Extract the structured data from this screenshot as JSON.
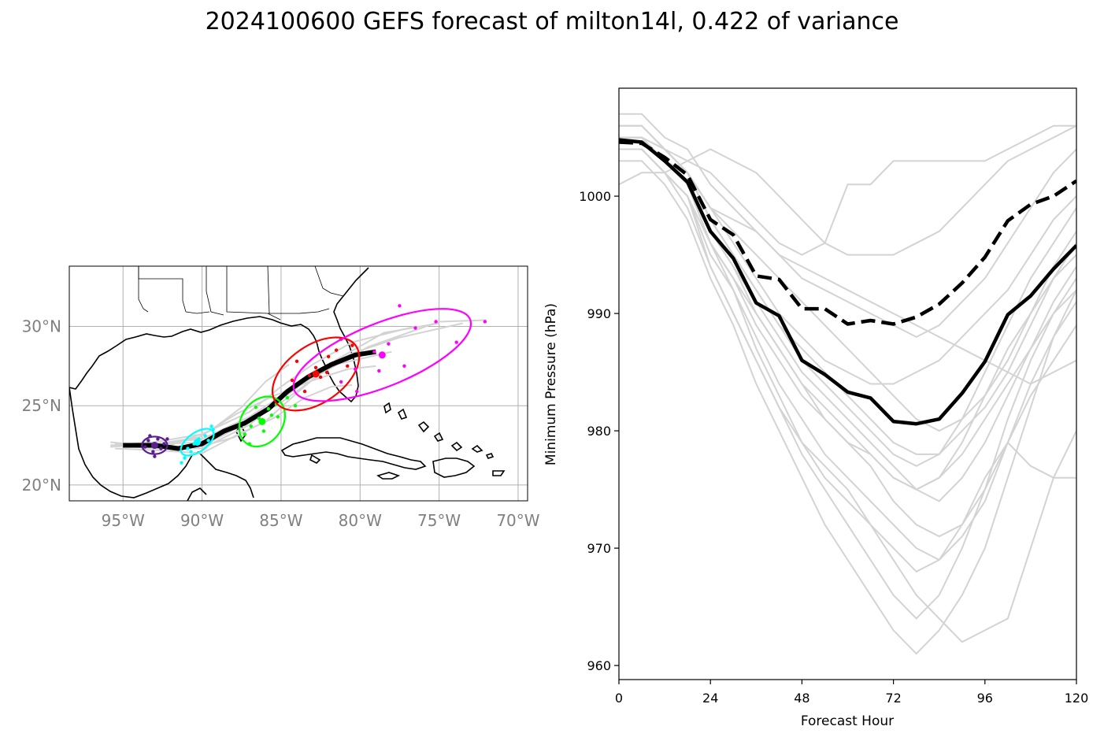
{
  "title": "2024100600 GEFS forecast of milton14l, 0.422 of variance",
  "chart_data": [
    {
      "type": "map",
      "panel": "track",
      "extent": {
        "lon": [
          -98.4,
          -69.4
        ],
        "lat": [
          19.0,
          33.8
        ]
      },
      "lon_ticks": [
        -95,
        -90,
        -85,
        -80,
        -75,
        -70
      ],
      "lat_ticks": [
        20,
        25,
        30
      ],
      "lon_tick_labels": [
        "95°W",
        "90°W",
        "85°W",
        "80°W",
        "75°W",
        "70°W"
      ],
      "lat_tick_labels": [
        "20°N",
        "25°N",
        "30°N"
      ],
      "grid": true,
      "colors": {
        "mean_track": "#000000",
        "members": "#d3d3d3",
        "coast": "#000000",
        "grid": "#b0b0b0",
        "tick_labels": "#808080"
      },
      "mean_track": [
        [
          -95.0,
          22.5
        ],
        [
          -93.0,
          22.5
        ],
        [
          -91.5,
          22.3
        ],
        [
          -90.0,
          22.6
        ],
        [
          -88.6,
          23.4
        ],
        [
          -87.3,
          23.9
        ],
        [
          -85.8,
          24.8
        ],
        [
          -84.6,
          25.9
        ],
        [
          -83.3,
          26.8
        ],
        [
          -81.8,
          27.6
        ],
        [
          -80.3,
          28.2
        ],
        [
          -79.0,
          28.4
        ]
      ],
      "member_tracks": [
        [
          [
            -95.8,
            22.4
          ],
          [
            -93.0,
            22.6
          ],
          [
            -90.0,
            22.9
          ],
          [
            -87.0,
            24.3
          ],
          [
            -85.0,
            25.6
          ],
          [
            -83.0,
            27.0
          ],
          [
            -80.5,
            28.3
          ],
          [
            -77.5,
            29.3
          ],
          [
            -73.5,
            30.2
          ]
        ],
        [
          [
            -95.8,
            22.7
          ],
          [
            -93.0,
            22.4
          ],
          [
            -90.0,
            22.3
          ],
          [
            -87.0,
            23.8
          ],
          [
            -85.5,
            25.0
          ],
          [
            -83.5,
            26.5
          ],
          [
            -81.5,
            27.6
          ],
          [
            -78.0,
            28.4
          ]
        ],
        [
          [
            -95.8,
            22.5
          ],
          [
            -93.0,
            22.7
          ],
          [
            -90.0,
            23.2
          ],
          [
            -87.0,
            24.6
          ],
          [
            -85.0,
            26.2
          ],
          [
            -83.0,
            27.6
          ],
          [
            -80.5,
            29.0
          ],
          [
            -76.5,
            30.0
          ]
        ],
        [
          [
            -95.5,
            22.3
          ],
          [
            -93.0,
            22.2
          ],
          [
            -90.0,
            22.0
          ],
          [
            -87.5,
            23.3
          ],
          [
            -85.5,
            24.2
          ],
          [
            -83.5,
            25.5
          ],
          [
            -81.8,
            26.2
          ],
          [
            -80.5,
            26.3
          ]
        ],
        [
          [
            -95.5,
            22.6
          ],
          [
            -92.5,
            22.6
          ],
          [
            -89.5,
            22.7
          ],
          [
            -87.0,
            24.0
          ],
          [
            -85.0,
            25.2
          ],
          [
            -82.5,
            27.0
          ],
          [
            -79.5,
            28.7
          ],
          [
            -75.0,
            30.3
          ],
          [
            -72.0,
            30.4
          ]
        ],
        [
          [
            -95.0,
            22.4
          ],
          [
            -92.0,
            22.5
          ],
          [
            -89.5,
            23.4
          ],
          [
            -87.5,
            24.9
          ],
          [
            -86.0,
            26.5
          ],
          [
            -84.5,
            27.6
          ]
        ],
        [
          [
            -95.5,
            22.5
          ],
          [
            -92.8,
            22.3
          ],
          [
            -90.2,
            22.4
          ],
          [
            -88.0,
            23.0
          ],
          [
            -86.0,
            24.0
          ],
          [
            -84.0,
            25.8
          ],
          [
            -81.5,
            27.9
          ],
          [
            -78.5,
            29.6
          ],
          [
            -75.0,
            30.2
          ]
        ],
        [
          [
            -95.5,
            22.5
          ],
          [
            -92.8,
            22.6
          ],
          [
            -90.2,
            23.0
          ],
          [
            -87.8,
            24.5
          ],
          [
            -85.5,
            25.6
          ],
          [
            -83.0,
            26.6
          ],
          [
            -80.8,
            27.3
          ],
          [
            -79.0,
            27.5
          ]
        ]
      ],
      "clusters": [
        {
          "hour": 24,
          "color": "#5b1f8f",
          "ellipse": {
            "lon": -93.0,
            "lat": 22.5,
            "a_deg": 0.8,
            "b_deg": 0.55,
            "angle": 0
          },
          "points": [
            [
              -93.4,
              22.8
            ],
            [
              -92.6,
              22.3
            ],
            [
              -93.1,
              22.1
            ],
            [
              -92.8,
              22.9
            ],
            [
              -93.6,
              22.4
            ],
            [
              -92.4,
              22.6
            ],
            [
              -93.0,
              21.8
            ],
            [
              -92.2,
              22.9
            ],
            [
              -93.3,
              23.1
            ],
            [
              -92.9,
              22.5
            ]
          ]
        },
        {
          "hour": 48,
          "color": "#00ffff",
          "ellipse": {
            "lon": -90.3,
            "lat": 22.7,
            "a_deg": 1.2,
            "b_deg": 0.6,
            "angle": -35
          },
          "points": [
            [
              -90.9,
              22.3
            ],
            [
              -89.8,
              23.1
            ],
            [
              -90.5,
              22.6
            ],
            [
              -91.1,
              21.7
            ],
            [
              -89.3,
              23.5
            ],
            [
              -90.2,
              22.9
            ],
            [
              -90.7,
              22.1
            ],
            [
              -89.6,
              22.8
            ],
            [
              -91.3,
              21.4
            ],
            [
              -89.4,
              23.7
            ]
          ]
        },
        {
          "hour": 72,
          "color": "#00ff00",
          "ellipse": {
            "lon": -86.2,
            "lat": 24.0,
            "a_deg": 1.7,
            "b_deg": 1.3,
            "angle": -55
          },
          "points": [
            [
              -86.4,
              24.2
            ],
            [
              -85.8,
              24.8
            ],
            [
              -86.9,
              23.7
            ],
            [
              -85.3,
              25.1
            ],
            [
              -87.3,
              23.2
            ],
            [
              -85.6,
              24.4
            ],
            [
              -86.1,
              23.4
            ],
            [
              -87.0,
              22.6
            ],
            [
              -84.6,
              25.5
            ],
            [
              -85.2,
              24.3
            ],
            [
              -86.6,
              24.9
            ],
            [
              -84.1,
              25.0
            ]
          ]
        },
        {
          "hour": 96,
          "color": "#ff0000",
          "ellipse": {
            "lon": -82.8,
            "lat": 27.0,
            "a_deg": 3.1,
            "b_deg": 1.8,
            "angle": -35
          },
          "points": [
            [
              -82.8,
              27.4
            ],
            [
              -82.5,
              26.8
            ],
            [
              -83.2,
              26.9
            ],
            [
              -84.3,
              26.6
            ],
            [
              -81.5,
              28.5
            ],
            [
              -82.0,
              28.1
            ],
            [
              -83.5,
              25.9
            ],
            [
              -80.8,
              27.5
            ],
            [
              -81.2,
              29.2
            ],
            [
              -82.1,
              27.1
            ],
            [
              -84.0,
              27.8
            ],
            [
              -80.5,
              28.8
            ]
          ]
        },
        {
          "hour": 120,
          "color": "#ff00ff",
          "ellipse": {
            "lon": -78.6,
            "lat": 28.2,
            "a_deg": 6.0,
            "b_deg": 2.0,
            "angle": -22
          },
          "points": [
            [
              -80.3,
              27.3
            ],
            [
              -79.1,
              28.4
            ],
            [
              -77.5,
              31.3
            ],
            [
              -75.2,
              30.3
            ],
            [
              -73.9,
              29.0
            ],
            [
              -76.5,
              29.9
            ],
            [
              -81.2,
              26.5
            ],
            [
              -72.1,
              30.3
            ],
            [
              -78.2,
              28.9
            ],
            [
              -77.2,
              27.5
            ],
            [
              -80.2,
              25.9
            ],
            [
              -78.8,
              27.2
            ]
          ]
        }
      ]
    },
    {
      "type": "line",
      "panel": "pressure",
      "xlabel": "Forecast Hour",
      "ylabel": "Minimum Pressure (hPa)",
      "xlim": [
        0,
        120
      ],
      "ylim": [
        958.8,
        1009.2
      ],
      "xticks": [
        0,
        24,
        48,
        72,
        96,
        120
      ],
      "yticks": [
        960,
        970,
        980,
        990,
        1000
      ],
      "x": [
        0,
        6,
        12,
        18,
        24,
        30,
        36,
        42,
        48,
        54,
        60,
        66,
        72,
        78,
        84,
        90,
        96,
        102,
        108,
        114,
        120
      ],
      "series": [
        {
          "style": "solid",
          "color": "#000000",
          "values": [
            1004.8,
            1004.6,
            1003.0,
            1001.2,
            997.0,
            994.7,
            990.9,
            989.8,
            986.0,
            984.8,
            983.3,
            982.8,
            980.8,
            980.6,
            981.0,
            983.2,
            985.9,
            989.9,
            991.5,
            993.8,
            995.8
          ]
        },
        {
          "style": "dashed",
          "color": "#000000",
          "values": [
            1004.6,
            1004.5,
            1003.3,
            1001.8,
            998.0,
            996.7,
            993.2,
            992.9,
            990.4,
            990.4,
            989.1,
            989.4,
            989.1,
            989.7,
            990.8,
            992.6,
            994.8,
            997.9,
            999.3,
            1000.0,
            1001.3
          ]
        }
      ],
      "members": [
        [
          1005,
          1005,
          1003,
          1001,
          996,
          993,
          989,
          986,
          983,
          981,
          979,
          978,
          976,
          975,
          976,
          979,
          983,
          987,
          990,
          993,
          995
        ],
        [
          1006,
          1006,
          1004,
          1002,
          998,
          995,
          992,
          989,
          986,
          984,
          982,
          980,
          978,
          977,
          978,
          981,
          985,
          989,
          993,
          996,
          999
        ],
        [
          1004,
          1004,
          1002,
          1000,
          994,
          990,
          986,
          982,
          978,
          975,
          972,
          969,
          966,
          964,
          966,
          970,
          975,
          981,
          986,
          990,
          993
        ],
        [
          1007,
          1007,
          1005,
          1004,
          1001,
          999,
          997,
          995,
          993,
          992,
          991,
          990,
          989,
          988,
          989,
          991,
          993,
          996,
          999,
          1002,
          1004
        ],
        [
          1003,
          1003,
          1001,
          998,
          993,
          989,
          984,
          980,
          976,
          972,
          969,
          966,
          963,
          961,
          963,
          966,
          970,
          976,
          982,
          988,
          992
        ],
        [
          1005,
          1005,
          1003,
          1001,
          997,
          994,
          991,
          988,
          985,
          983,
          981,
          979,
          977,
          975,
          974,
          976,
          979,
          983,
          987,
          991,
          994
        ],
        [
          1006,
          1006,
          1004,
          1002,
          999,
          997,
          995,
          993,
          991,
          989,
          987,
          985,
          983,
          981,
          980,
          981,
          983,
          986,
          990,
          994,
          997
        ],
        [
          1004,
          1004,
          1002,
          1000,
          995,
          992,
          988,
          984,
          981,
          978,
          976,
          974,
          972,
          970,
          969,
          971,
          974,
          979,
          984,
          988,
          991
        ],
        [
          1005,
          1005,
          1003,
          1002,
          999,
          998,
          997,
          995,
          994,
          993,
          992,
          991,
          990,
          989,
          988,
          987,
          986,
          985,
          984,
          985,
          986
        ],
        [
          1001,
          1002,
          1002,
          1003,
          1004,
          1003,
          1002,
          1000,
          998,
          996,
          995,
          995,
          995,
          996,
          997,
          999,
          1001,
          1003,
          1004,
          1005,
          1006
        ],
        [
          1005,
          1005,
          1004,
          1003,
          1002,
          1000,
          998,
          996,
          995,
          996,
          1001,
          1001,
          1003,
          1003,
          1003,
          1003,
          1003,
          1004,
          1005,
          1006,
          1006
        ],
        [
          1005,
          1005,
          1003,
          1001,
          996,
          992,
          987,
          983,
          979,
          976,
          974,
          972,
          970,
          968,
          969,
          972,
          976,
          979,
          977,
          976,
          976
        ],
        [
          1004,
          1004,
          1002,
          999,
          994,
          990,
          986,
          982,
          979,
          977,
          975,
          972,
          969,
          966,
          964,
          962,
          963,
          964,
          970,
          976,
          980
        ],
        [
          1006,
          1006,
          1004,
          1002,
          998,
          995,
          992,
          989,
          987,
          985,
          983,
          981,
          979,
          978,
          978,
          980,
          982,
          985,
          989,
          993,
          996
        ],
        [
          1005,
          1005,
          1003,
          1001,
          997,
          994,
          990,
          987,
          984,
          982,
          980,
          978,
          976,
          975,
          976,
          978,
          981,
          984,
          987,
          990,
          992
        ],
        [
          1004,
          1004,
          1002,
          1000,
          996,
          993,
          990,
          987,
          984,
          981,
          979,
          977,
          974,
          972,
          971,
          972,
          975,
          979,
          983,
          986,
          989
        ],
        [
          1005,
          1005,
          1004,
          1002,
          999,
          996,
          993,
          990,
          988,
          986,
          985,
          984,
          984,
          985,
          986,
          988,
          990,
          992,
          995,
          998,
          1000
        ]
      ]
    }
  ]
}
